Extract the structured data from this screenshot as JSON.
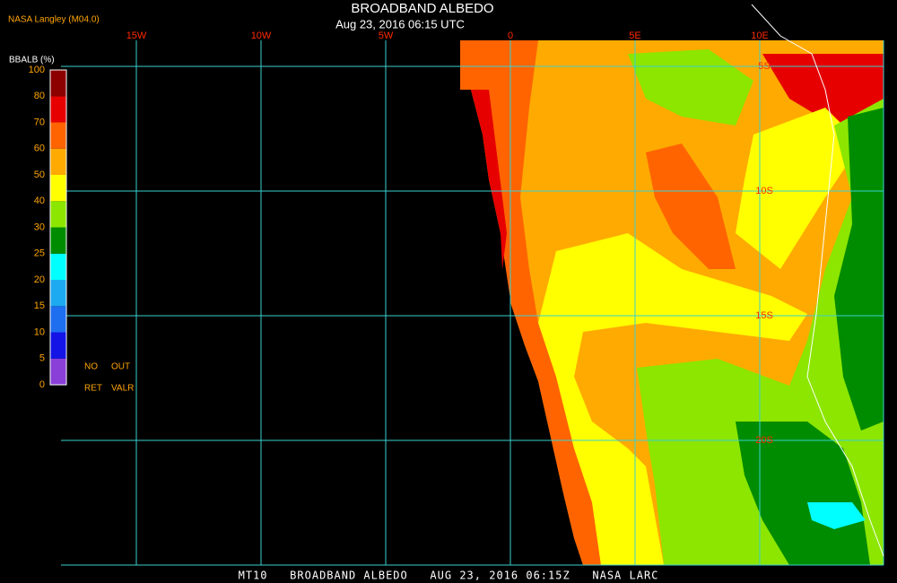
{
  "header": {
    "title": "BROADBAND ALBEDO",
    "subtitle": "Aug 23, 2016 06:15 UTC",
    "producer": "NASA Langley (M04.0)"
  },
  "colorbar": {
    "label": "BBALB (%)",
    "ticks": [
      0,
      5,
      10,
      15,
      20,
      25,
      30,
      40,
      50,
      60,
      70,
      80,
      100
    ],
    "colors": [
      "#8a3fd8",
      "#1414e6",
      "#1e6ef0",
      "#1eaaf0",
      "#00ffff",
      "#008c00",
      "#8ce600",
      "#ffff00",
      "#ffaa00",
      "#ff6400",
      "#e60000",
      "#8c0000"
    ]
  },
  "notes": [
    "NO",
    "OUT",
    "RET",
    "VALR"
  ],
  "map": {
    "longitude_labels": [
      "15W",
      "10W",
      "5W",
      "0",
      "5E",
      "10E"
    ],
    "latitude_labels": [
      "5S",
      "10S",
      "15S",
      "20S"
    ]
  },
  "footer": "MT10   BROADBAND ALBEDO   AUG 23, 2016 06:15Z   NASA LARC"
}
